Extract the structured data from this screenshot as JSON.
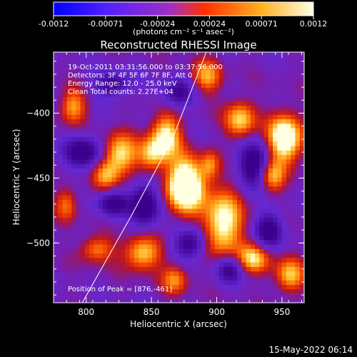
{
  "chart_data": {
    "type": "heatmap",
    "title": "Reconstructed RHESSI Image",
    "xlabel": "Heliocentric X (arcsec)",
    "ylabel": "Heliocentric Y (arcsec)",
    "xlim": [
      775,
      967
    ],
    "ylim": [
      -546,
      -353
    ],
    "xticks": [
      800,
      850,
      900,
      950
    ],
    "yticks": [
      -400,
      -450,
      -500
    ],
    "colorbar": {
      "ticks": [
        "-0.0012",
        "-0.00071",
        "-0.00024",
        "0.00024",
        "0.00071",
        "0.0012"
      ],
      "range": [
        -0.0012,
        0.0012
      ],
      "unit_label": "(photons cm⁻² s⁻¹ asec⁻²)",
      "colormap": [
        "#0000ff",
        "#8040ff",
        "#ff6020",
        "#ffd060",
        "#ffffe0"
      ]
    },
    "annotations": [
      "19-Oct-2011 03:31:56.000 to 03:37:56.000",
      "Detectors: 3F 4F 5F 6F 7F 8F, Att 0",
      "Energy Range: 12.0 - 25.0 keV",
      "Clean    Total counts: 2.27E+04"
    ],
    "peak_label": "Position of Peak = [876,-461]",
    "peak": [
      876,
      -461
    ],
    "limb_line": [
      [
        797,
        -546
      ],
      [
        834,
        -480
      ],
      [
        866,
        -420
      ],
      [
        892,
        -353
      ]
    ],
    "blobs": [
      {
        "x": 876,
        "y": -456,
        "sx": 10,
        "sy": 14,
        "a": 1.0
      },
      {
        "x": 861,
        "y": -418,
        "sx": 8,
        "sy": 12,
        "a": 0.65
      },
      {
        "x": 850,
        "y": -432,
        "sx": 7,
        "sy": 9,
        "a": 0.45
      },
      {
        "x": 826,
        "y": -432,
        "sx": 9,
        "sy": 11,
        "a": 0.6
      },
      {
        "x": 815,
        "y": -448,
        "sx": 7,
        "sy": 8,
        "a": 0.4
      },
      {
        "x": 808,
        "y": -505,
        "sx": 9,
        "sy": 7,
        "a": 0.4
      },
      {
        "x": 843,
        "y": -508,
        "sx": 10,
        "sy": 9,
        "a": 0.55
      },
      {
        "x": 868,
        "y": -528,
        "sx": 7,
        "sy": 8,
        "a": 0.4
      },
      {
        "x": 905,
        "y": -485,
        "sx": 10,
        "sy": 18,
        "a": 0.7
      },
      {
        "x": 918,
        "y": -405,
        "sx": 8,
        "sy": 10,
        "a": 0.55
      },
      {
        "x": 952,
        "y": -420,
        "sx": 9,
        "sy": 13,
        "a": 0.85
      },
      {
        "x": 942,
        "y": -448,
        "sx": 7,
        "sy": 9,
        "a": 0.55
      },
      {
        "x": 928,
        "y": -512,
        "sx": 9,
        "sy": 8,
        "a": 0.55
      },
      {
        "x": 956,
        "y": -525,
        "sx": 8,
        "sy": 9,
        "a": 0.5
      },
      {
        "x": 790,
        "y": -395,
        "sx": 7,
        "sy": 9,
        "a": 0.45
      },
      {
        "x": 785,
        "y": -470,
        "sx": 6,
        "sy": 9,
        "a": 0.35
      },
      {
        "x": 892,
        "y": -372,
        "sx": 8,
        "sy": 9,
        "a": 0.45
      },
      {
        "x": 895,
        "y": -440,
        "sx": 5,
        "sy": 8,
        "a": 0.35
      }
    ],
    "dips": [
      {
        "x": 798,
        "y": -430,
        "sx": 10,
        "sy": 9,
        "a": 0.5
      },
      {
        "x": 845,
        "y": -470,
        "sx": 8,
        "sy": 12,
        "a": 0.55
      },
      {
        "x": 930,
        "y": -440,
        "sx": 10,
        "sy": 12,
        "a": 0.55
      },
      {
        "x": 910,
        "y": -520,
        "sx": 8,
        "sy": 8,
        "a": 0.45
      },
      {
        "x": 820,
        "y": -470,
        "sx": 8,
        "sy": 7,
        "a": 0.45
      },
      {
        "x": 880,
        "y": -500,
        "sx": 9,
        "sy": 8,
        "a": 0.45
      },
      {
        "x": 940,
        "y": -490,
        "sx": 8,
        "sy": 10,
        "a": 0.45
      },
      {
        "x": 870,
        "y": -385,
        "sx": 9,
        "sy": 8,
        "a": 0.4
      },
      {
        "x": 820,
        "y": -378,
        "sx": 10,
        "sy": 7,
        "a": 0.4
      }
    ]
  },
  "timestamp": "15-May-2022 06:14"
}
